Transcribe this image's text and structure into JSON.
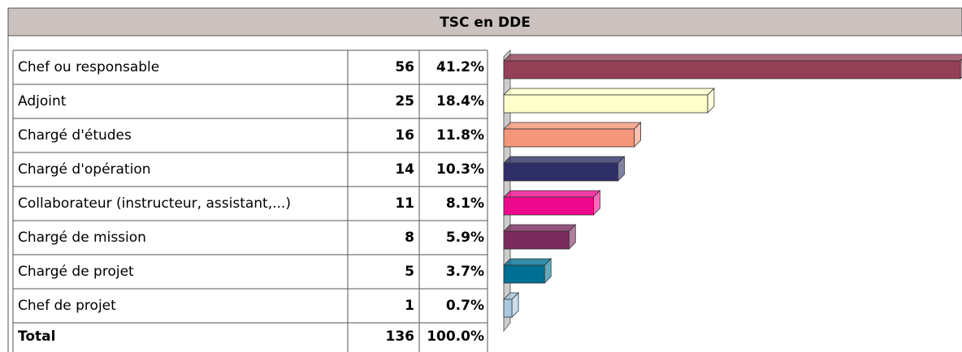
{
  "chart_data": {
    "type": "bar",
    "title": "TSC en DDE",
    "categories": [
      "Chef ou responsable",
      "Adjoint",
      "Chargé d'études",
      "Chargé d'opération",
      "Collaborateur (instructeur, assistant,...)",
      "Chargé de mission",
      "Chargé de projet",
      "Chef de projet"
    ],
    "values": [
      56,
      25,
      16,
      14,
      11,
      8,
      5,
      1
    ],
    "percentage_labels": [
      "41.2%",
      "18.4%",
      "11.8%",
      "10.3%",
      "8.1%",
      "5.9%",
      "3.7%",
      "0.7%"
    ],
    "colors": [
      "#944056",
      "#ffffcc",
      "#f4967a",
      "#2e2f66",
      "#ee0a8c",
      "#7b2a5e",
      "#006f94",
      "#a8c8e0"
    ],
    "total_label": "Total",
    "total": 136,
    "total_percentage_label": "100.0%"
  }
}
